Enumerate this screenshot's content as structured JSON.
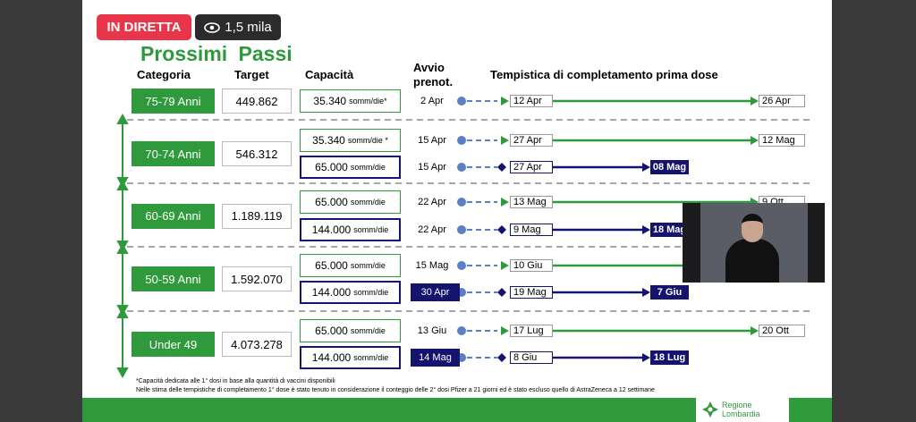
{
  "live_badge": "IN DIRETTA",
  "viewers": "1,5 mila",
  "slide": {
    "title": "Prossimi Passi",
    "headers": [
      "Categoria",
      "Target",
      "Capacità",
      "Avvio prenot.",
      "Tempistica di completamento prima dose"
    ],
    "groups": [
      {
        "category": "75-79 Anni",
        "target": "449.862",
        "rows": [
          {
            "capacity": "35.340",
            "unit": "somm/die*",
            "avvio": "2 Apr",
            "start": "12 Apr",
            "end": "26 Apr",
            "color": "#2f9a3c"
          }
        ]
      },
      {
        "category": "70-74 Anni",
        "target": "546.312",
        "rows": [
          {
            "capacity": "35.340",
            "unit": "somm/die *",
            "avvio": "15 Apr",
            "start": "27 Apr",
            "end": "12 Mag",
            "color": "#2f9a3c"
          },
          {
            "capacity": "65.000",
            "unit": "somm/die",
            "avvio": "15 Apr",
            "start": "27 Apr",
            "end": "08 Mag",
            "color": "#14146e"
          }
        ]
      },
      {
        "category": "60-69 Anni",
        "target": "1.189.119",
        "rows": [
          {
            "capacity": "65.000",
            "unit": "somm/die",
            "avvio": "22 Apr",
            "start": "13 Mag",
            "end": "9 Ott",
            "color": "#2f9a3c"
          },
          {
            "capacity": "144.000",
            "unit": "somm/die",
            "avvio": "22 Apr",
            "start": "9 Mag",
            "end": "18 Mag",
            "color": "#14146e"
          }
        ]
      },
      {
        "category": "50-59 Anni",
        "target": "1.592.070",
        "rows": [
          {
            "capacity": "65.000",
            "unit": "somm/die",
            "avvio": "15 Mag",
            "start": "10 Giu",
            "color": "#2f9a3c"
          },
          {
            "capacity": "144.000",
            "unit": "somm/die",
            "avvio": "30 Apr",
            "avvio_boxed": true,
            "start": "19 Mag",
            "end": "7 Giu",
            "color": "#14146e"
          }
        ]
      },
      {
        "category": "Under 49",
        "target": "4.073.278",
        "rows": [
          {
            "capacity": "65.000",
            "unit": "somm/die",
            "avvio": "13 Giu",
            "start": "17 Lug",
            "end": "20 Ott",
            "color": "#2f9a3c"
          },
          {
            "capacity": "144.000",
            "unit": "somm/die",
            "avvio": "14 Mag",
            "avvio_boxed": true,
            "start": "8 Giu",
            "end": "18 Lug",
            "color": "#14146e"
          }
        ]
      }
    ],
    "footnotes": [
      "*Capacità dedicata alle 1° dosi in base alla quantità di vaccini disponibili",
      "Nelle stima delle tempistiche di completamento 1° dose è stato tenuto in considerazione il conteggio delle 2° dosi Pfizer a 21 giorni ed è stato escluso quello di AstraZeneca a 12 settimane"
    ],
    "logo": [
      "Regione",
      "Lombardia"
    ]
  }
}
